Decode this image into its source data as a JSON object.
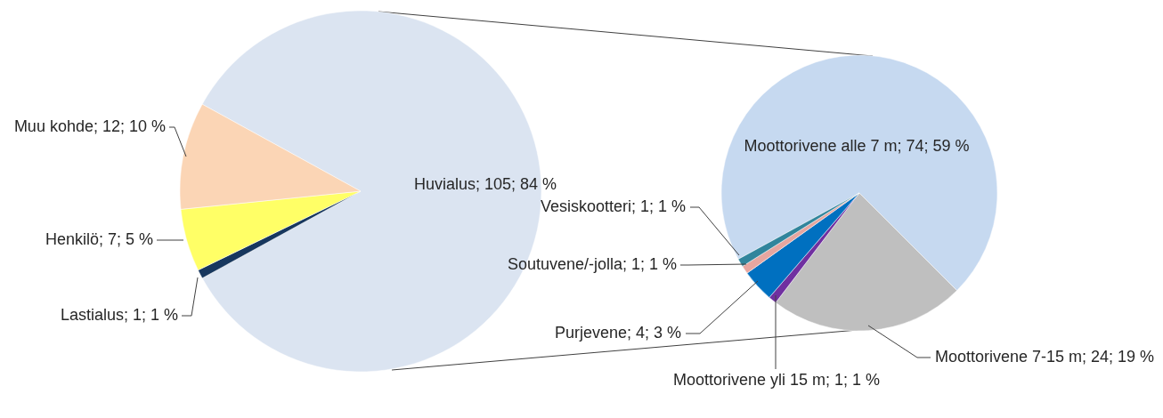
{
  "chart_data": [
    {
      "type": "pie",
      "categories": [
        "Huvialus",
        "Lastialus",
        "Henkilö",
        "Muu kohde"
      ],
      "values": [
        105,
        1,
        7,
        12
      ],
      "colors": [
        "#dbe4f1",
        "#17375e",
        "#ffff66",
        "#fbd5b5"
      ],
      "value_labels": [
        "105; 84 %",
        "1; 1 %",
        "7; 5 %",
        "12; 10 %"
      ]
    },
    {
      "type": "pie",
      "categories": [
        "Moottorivene alle 7 m",
        "Moottorivene 7-15 m",
        "Moottorivene yli 15 m",
        "Purjevene",
        "Soutuvene/-jolla",
        "Vesiskootteri"
      ],
      "values": [
        74,
        24,
        1,
        4,
        1,
        1
      ],
      "colors": [
        "#c6d9f0",
        "#bfbfbf",
        "#7030a0",
        "#0070c0",
        "#e6a6a0",
        "#31859c"
      ],
      "value_labels": [
        "74; 59 %",
        "24; 19 %",
        "1; 1 %",
        "4; 3 %",
        "1; 1 %",
        "1; 1 %"
      ]
    }
  ]
}
